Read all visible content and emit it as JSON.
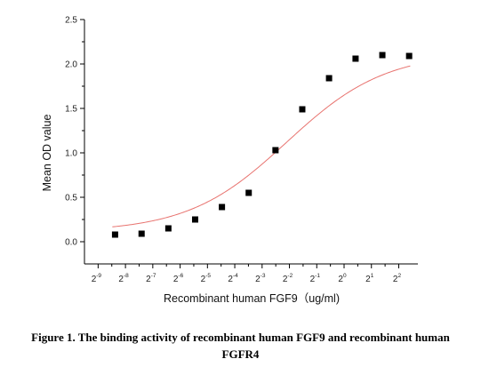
{
  "chart_data": {
    "type": "scatter",
    "xlabel": "Recombinant human  FGF9（ug/ml)",
    "ylabel": "Mean OD value",
    "x_scale": "log2",
    "xlim": [
      -9.5,
      2.7
    ],
    "ylim": [
      -0.25,
      2.5
    ],
    "x_ticks": [
      {
        "exp": -9,
        "base": "2",
        "sup": "-9"
      },
      {
        "exp": -8,
        "base": "2",
        "sup": "-8"
      },
      {
        "exp": -7,
        "base": "2",
        "sup": "-7"
      },
      {
        "exp": -6,
        "base": "2",
        "sup": "-6"
      },
      {
        "exp": -5,
        "base": "2",
        "sup": "-5"
      },
      {
        "exp": -4,
        "base": "2",
        "sup": "-4"
      },
      {
        "exp": -3,
        "base": "2",
        "sup": "-3"
      },
      {
        "exp": -2,
        "base": "2",
        "sup": "-2"
      },
      {
        "exp": -1,
        "base": "2",
        "sup": "-1"
      },
      {
        "exp": 0,
        "base": "2",
        "sup": "0"
      },
      {
        "exp": 1,
        "base": "2",
        "sup": "1"
      },
      {
        "exp": 2,
        "base": "2",
        "sup": "2"
      }
    ],
    "y_ticks": [
      "0.0",
      "0.5",
      "1.0",
      "1.5",
      "2.0",
      "2.5"
    ],
    "y_tick_values": [
      0.0,
      0.5,
      1.0,
      1.5,
      2.0,
      2.5
    ],
    "points_log2x": [
      -8.38,
      -7.41,
      -6.43,
      -5.45,
      -4.47,
      -3.49,
      -2.51,
      -1.53,
      -0.55,
      0.42,
      1.4,
      2.38
    ],
    "points_y": [
      0.08,
      0.09,
      0.15,
      0.25,
      0.39,
      0.55,
      1.03,
      1.49,
      1.84,
      2.06,
      2.1,
      2.09
    ],
    "fit": {
      "type": "4PL",
      "bottom": 0.11,
      "top": 2.13,
      "ec50_log2": -2.1,
      "hill": 0.8
    },
    "colors": {
      "points": "#000000",
      "fit_line": "#e8736f",
      "axis": "#000000"
    },
    "grid": false,
    "legend": "none"
  },
  "caption": {
    "line1": "Figure 1. The binding activity of recombinant human FGF9 and recombinant human",
    "line2": "FGFR4"
  }
}
